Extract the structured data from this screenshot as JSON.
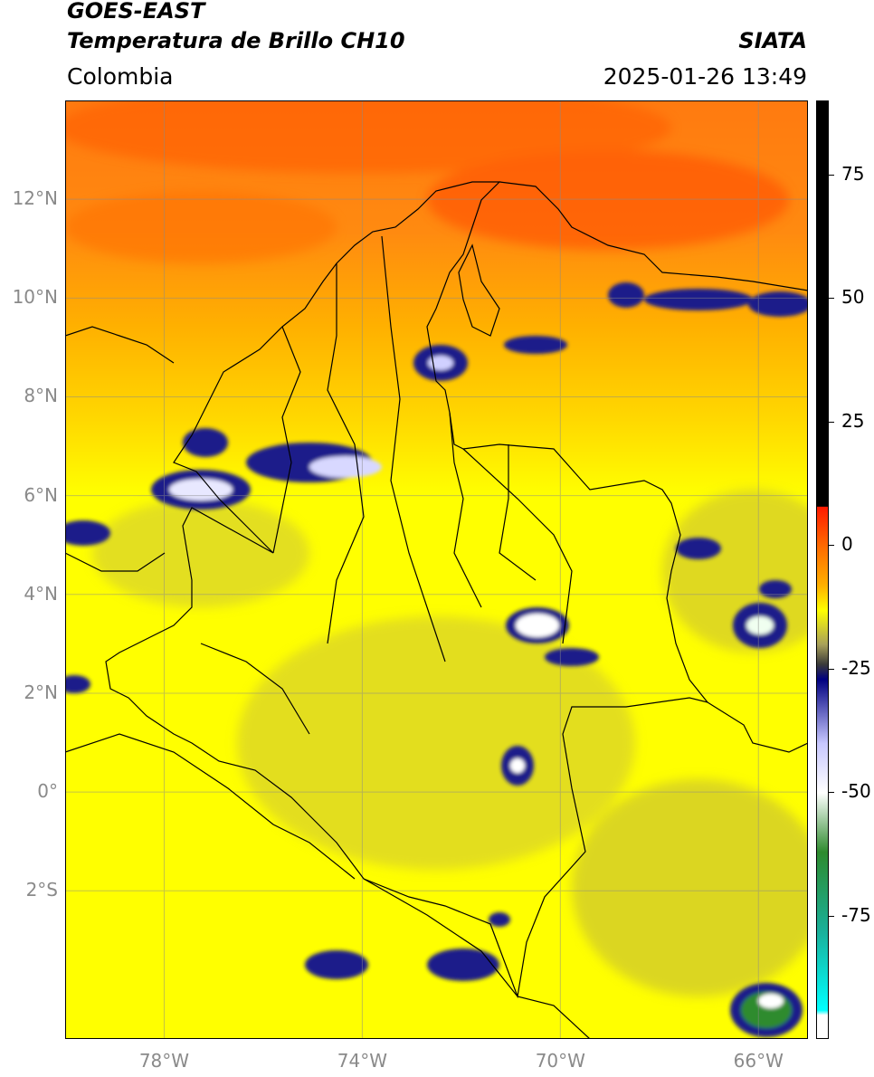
{
  "header": {
    "title_line1": "GOES-EAST",
    "title_line2": "Temperatura de Brillo CH10",
    "agency": "SIATA",
    "region": "Colombia",
    "datetime": "2025-01-26 13:49"
  },
  "map": {
    "projection": "PlateCarree",
    "lon_range": [
      -80.0,
      -65.0
    ],
    "lat_range": [
      -5.0,
      14.0
    ],
    "grid": true,
    "lat_ticks": [
      {
        "value": 12,
        "label": "12°N"
      },
      {
        "value": 10,
        "label": "10°N"
      },
      {
        "value": 8,
        "label": "8°N"
      },
      {
        "value": 6,
        "label": "6°N"
      },
      {
        "value": 4,
        "label": "4°N"
      },
      {
        "value": 2,
        "label": "2°N"
      },
      {
        "value": 0,
        "label": "0°"
      },
      {
        "value": -2,
        "label": "2°S"
      }
    ],
    "lon_ticks": [
      {
        "value": -78,
        "label": "78°W"
      },
      {
        "value": -74,
        "label": "74°W"
      },
      {
        "value": -70,
        "label": "70°W"
      },
      {
        "value": -66,
        "label": "66°W"
      }
    ]
  },
  "colorbar": {
    "range": [
      -100,
      90
    ],
    "ticks": [
      {
        "value": 75,
        "label": "75"
      },
      {
        "value": 50,
        "label": "50"
      },
      {
        "value": 25,
        "label": "25"
      },
      {
        "value": 0,
        "label": "0"
      },
      {
        "value": -25,
        "label": "-25"
      },
      {
        "value": -50,
        "label": "-50"
      },
      {
        "value": -75,
        "label": "-75"
      }
    ],
    "stops": [
      {
        "value": 90,
        "color": "#000000"
      },
      {
        "value": 8,
        "color": "#000000"
      },
      {
        "value": 7.9,
        "color": "#ff1a00"
      },
      {
        "value": 0,
        "color": "#ff6a00"
      },
      {
        "value": -8,
        "color": "#ffb000"
      },
      {
        "value": -13,
        "color": "#ffff00"
      },
      {
        "value": -20,
        "color": "#a8a05a"
      },
      {
        "value": -24,
        "color": "#3a3a3a"
      },
      {
        "value": -27,
        "color": "#000080"
      },
      {
        "value": -40,
        "color": "#c8c8ff"
      },
      {
        "value": -50,
        "color": "#ffffff"
      },
      {
        "value": -62,
        "color": "#2e8b2e"
      },
      {
        "value": -78,
        "color": "#1ab09a"
      },
      {
        "value": -94,
        "color": "#00ffff"
      },
      {
        "value": -95,
        "color": "#ffffff"
      },
      {
        "value": -100,
        "color": "#ffffff"
      }
    ]
  }
}
